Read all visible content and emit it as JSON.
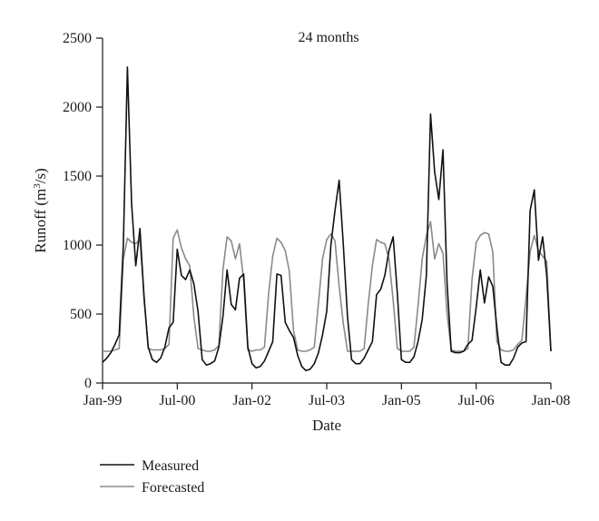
{
  "chart_data": {
    "type": "line",
    "title": "24 months",
    "xlabel": "Date",
    "ylabel": "Runoff (m³/s)",
    "ylabel_parts": {
      "pre": "Runoff (m",
      "sup": "3",
      "post": "/s)"
    },
    "ylim": [
      0,
      2500
    ],
    "yticks": [
      0,
      500,
      1000,
      1500,
      2000,
      2500
    ],
    "x_start": "Jan-99",
    "x_end": "Jan-08",
    "xticks": [
      "Jan-99",
      "Jul-00",
      "Jan-02",
      "Jul-03",
      "Jan-05",
      "Jul-06",
      "Jan-08"
    ],
    "legend": "bottom-left",
    "grid": false,
    "series": [
      {
        "name": "Measured",
        "color": "#111111",
        "values": [
          150,
          180,
          220,
          280,
          350,
          1000,
          2290,
          1300,
          850,
          1120,
          620,
          260,
          170,
          150,
          180,
          260,
          400,
          440,
          970,
          780,
          750,
          820,
          720,
          520,
          170,
          130,
          140,
          160,
          260,
          480,
          820,
          570,
          530,
          760,
          790,
          260,
          140,
          110,
          120,
          160,
          230,
          300,
          790,
          780,
          440,
          380,
          330,
          200,
          120,
          90,
          100,
          140,
          220,
          350,
          520,
          1000,
          1250,
          1470,
          1000,
          480,
          170,
          140,
          140,
          180,
          240,
          300,
          640,
          680,
          780,
          960,
          1060,
          650,
          170,
          150,
          150,
          190,
          300,
          460,
          780,
          1950,
          1530,
          1330,
          1690,
          720,
          230,
          220,
          220,
          230,
          280,
          310,
          550,
          820,
          580,
          770,
          700,
          400,
          150,
          130,
          130,
          180,
          260,
          290,
          300,
          1250,
          1400,
          890,
          1060,
          780,
          230
        ]
      },
      {
        "name": "Forecasted",
        "color": "#8a8a8a",
        "values": [
          230,
          230,
          230,
          240,
          250,
          900,
          1050,
          1020,
          1010,
          1040,
          640,
          250,
          240,
          240,
          240,
          250,
          280,
          1050,
          1110,
          980,
          900,
          850,
          480,
          250,
          240,
          230,
          230,
          240,
          270,
          820,
          1060,
          1030,
          900,
          1010,
          740,
          240,
          230,
          240,
          240,
          260,
          650,
          920,
          1050,
          1020,
          960,
          810,
          380,
          240,
          230,
          230,
          240,
          260,
          580,
          900,
          1040,
          1080,
          1030,
          700,
          430,
          230,
          230,
          230,
          230,
          250,
          570,
          850,
          1040,
          1020,
          1010,
          900,
          600,
          250,
          230,
          230,
          230,
          260,
          560,
          900,
          1070,
          1170,
          900,
          1010,
          940,
          500,
          240,
          230,
          230,
          230,
          250,
          750,
          1020,
          1070,
          1090,
          1080,
          950,
          300,
          240,
          230,
          230,
          240,
          280,
          310,
          620,
          950,
          1070,
          960,
          920,
          880,
          230
        ]
      }
    ]
  }
}
